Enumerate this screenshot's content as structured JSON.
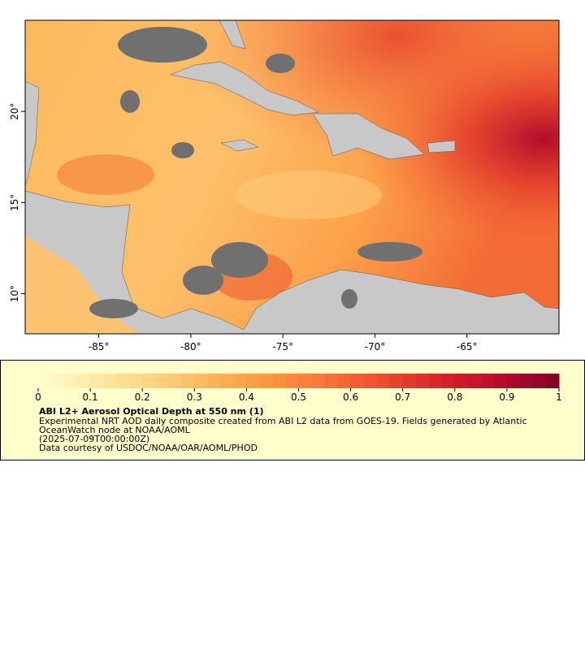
{
  "map": {
    "xlim": [
      -89,
      -60
    ],
    "ylim": [
      7.8,
      25
    ],
    "xticks": [
      {
        "value": -85,
        "label": "-85°"
      },
      {
        "value": -80,
        "label": "-80°"
      },
      {
        "value": -75,
        "label": "-75°"
      },
      {
        "value": -70,
        "label": "-70°"
      },
      {
        "value": -65,
        "label": "-65°"
      }
    ],
    "yticks": [
      {
        "value": 10,
        "label": "10°"
      },
      {
        "value": 15,
        "label": "15°"
      },
      {
        "value": 20,
        "label": "20°"
      }
    ]
  },
  "colorbar": {
    "lim": [
      0,
      1
    ],
    "ticks": [
      0,
      0.1,
      0.2,
      0.3,
      0.4,
      0.5,
      0.6,
      0.7,
      0.8,
      0.9,
      1
    ],
    "colormap": [
      "#ffffcc",
      "#fee8a5",
      "#fed380",
      "#fdb35a",
      "#fd9640",
      "#f8723a",
      "#ec4a2e",
      "#d7212a",
      "#b70b2d",
      "#800026"
    ]
  },
  "caption": {
    "title": "ABI L2+ Aerosol Optical Depth at 550 nm (1)",
    "lines": [
      "Experimental NRT AOD daily composite created from ABI L2 data from GOES-19. Fields generated by Atlantic",
      "OceanWatch node at NOAA/AOML",
      "(2025-07-09T00:00:00Z)",
      "Data courtesy of USDOC/NOAA/OAR/AOML/PHOD"
    ]
  }
}
